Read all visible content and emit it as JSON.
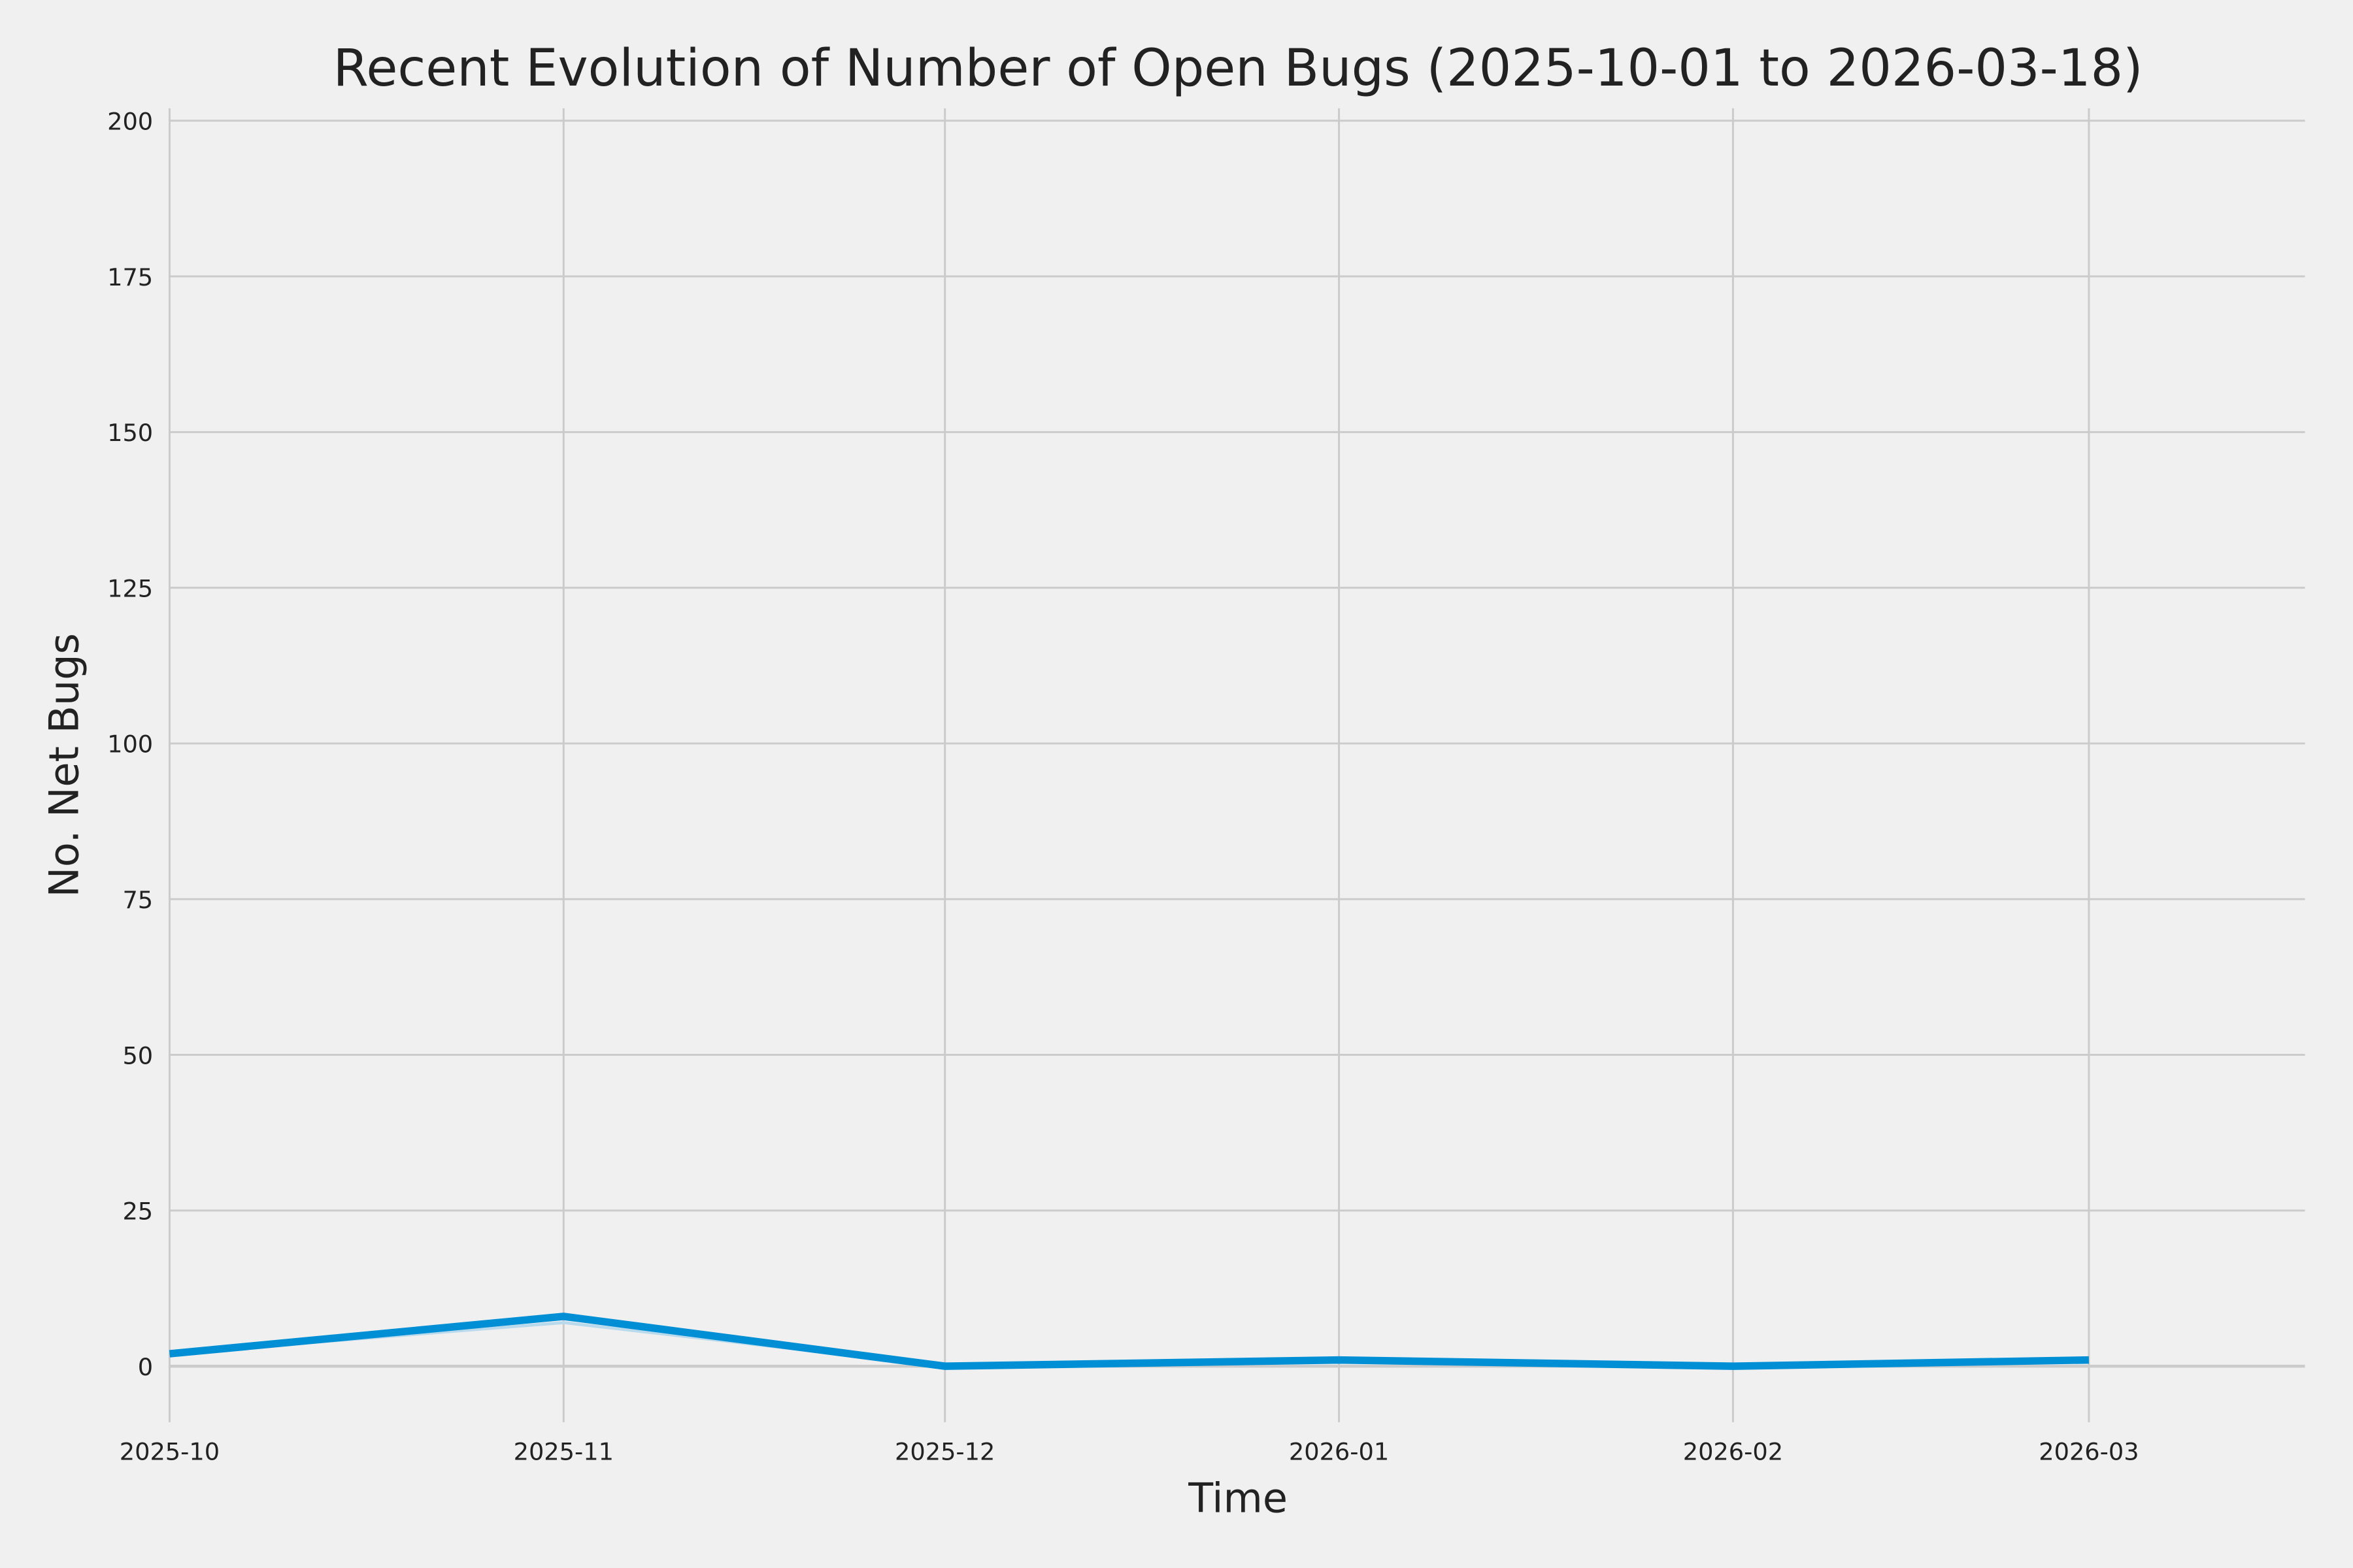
{
  "chart_data": {
    "type": "line",
    "title": "Recent Evolution of Number of Open Bugs (2025-10-01 to 2026-03-18)",
    "xlabel": "Time",
    "ylabel": "No. Net Bugs",
    "xlim": [
      "2025-10-01",
      "2026-03-18"
    ],
    "ylim": [
      -9,
      202
    ],
    "x_ticks": [
      "2025-10",
      "2025-11",
      "2025-12",
      "2026-01",
      "2026-02",
      "2026-03"
    ],
    "y_ticks": [
      0,
      25,
      50,
      75,
      100,
      125,
      150,
      175,
      200
    ],
    "grid": true,
    "background": "#f0f0f0",
    "grid_color": "#cbcbcb",
    "series": [
      {
        "color": "#b9d9ec",
        "x": [
          "2025-10-01",
          "2025-11-01",
          "2025-12-01",
          "2026-01-01",
          "2026-02-01",
          "2026-03-01"
        ],
        "values": [
          2,
          7,
          0,
          1,
          0,
          1
        ]
      },
      {
        "color": "#008fd5",
        "x": [
          "2025-10-01",
          "2025-11-01",
          "2025-12-01",
          "2026-01-01",
          "2026-02-01",
          "2026-03-01"
        ],
        "values": [
          2,
          8,
          0,
          1,
          0,
          1
        ]
      }
    ]
  }
}
